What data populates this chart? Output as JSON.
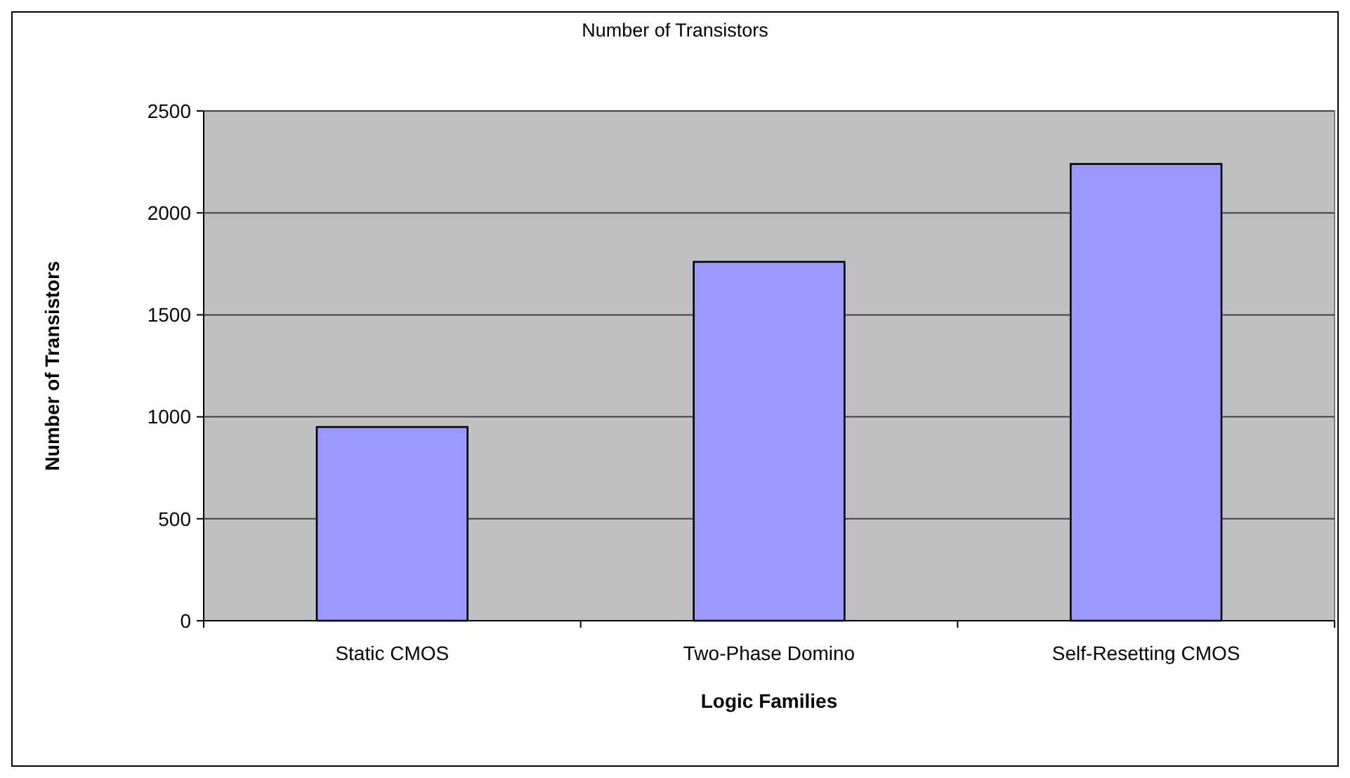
{
  "chart_data": {
    "type": "bar",
    "title": "Number of Transistors",
    "xlabel": "Logic Families",
    "ylabel": "Number of Transistors",
    "categories": [
      "Static CMOS",
      "Two-Phase Domino",
      "Self-Resetting CMOS"
    ],
    "values": [
      950,
      1760,
      2240
    ],
    "color": "#9999ff",
    "ylim": [
      0,
      2500
    ],
    "yticks": [
      0,
      500,
      1000,
      1500,
      2000,
      2500
    ],
    "grid": "y"
  }
}
